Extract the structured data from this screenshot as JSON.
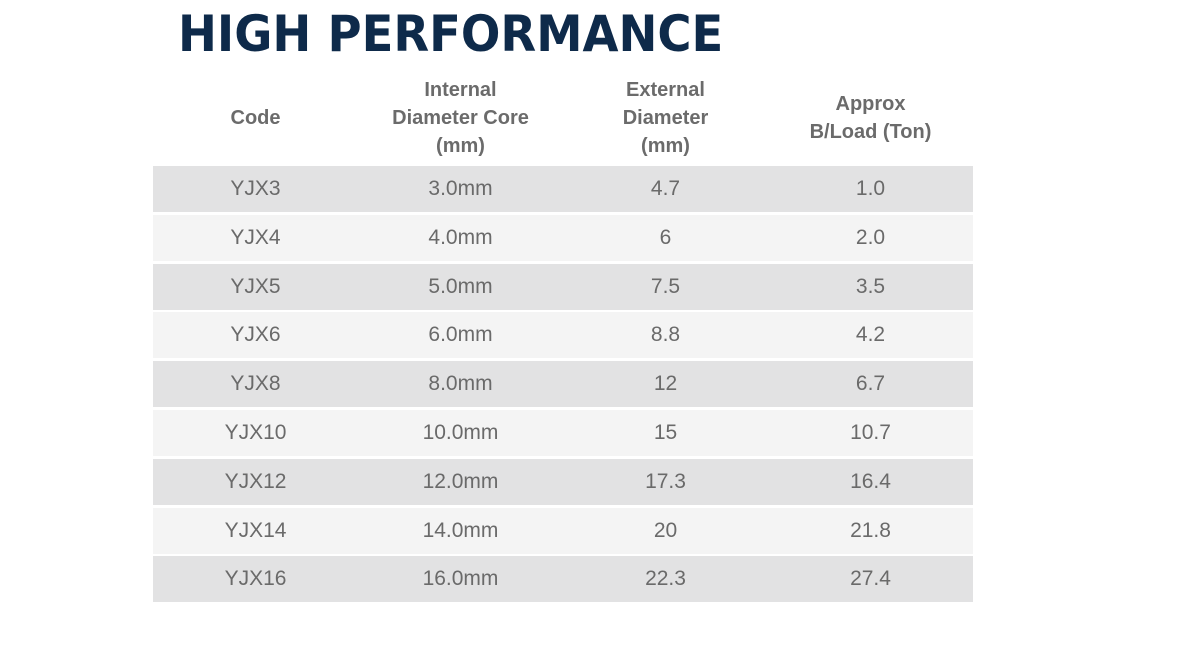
{
  "title": "HIGH PERFORMANCE",
  "table": {
    "headers": [
      {
        "line1": "Code",
        "line2": "",
        "line3": ""
      },
      {
        "line1": "Internal",
        "line2": "Diameter Core",
        "line3": "(mm)"
      },
      {
        "line1": "External",
        "line2": "Diameter",
        "line3": "(mm)"
      },
      {
        "line1": "Approx",
        "line2": "B/Load (Ton)",
        "line3": ""
      }
    ],
    "rows": [
      {
        "code": "YJX3",
        "internal": "3.0mm",
        "external": "4.7",
        "load": "1.0"
      },
      {
        "code": "YJX4",
        "internal": "4.0mm",
        "external": "6",
        "load": "2.0"
      },
      {
        "code": "YJX5",
        "internal": "5.0mm",
        "external": "7.5",
        "load": "3.5"
      },
      {
        "code": "YJX6",
        "internal": "6.0mm",
        "external": "8.8",
        "load": "4.2"
      },
      {
        "code": "YJX8",
        "internal": "8.0mm",
        "external": "12",
        "load": "6.7"
      },
      {
        "code": "YJX10",
        "internal": "10.0mm",
        "external": "15",
        "load": "10.7"
      },
      {
        "code": "YJX12",
        "internal": "12.0mm",
        "external": "17.3",
        "load": "16.4"
      },
      {
        "code": "YJX14",
        "internal": "14.0mm",
        "external": "20",
        "load": "21.8"
      },
      {
        "code": "YJX16",
        "internal": "16.0mm",
        "external": "22.3",
        "load": "27.4"
      }
    ]
  },
  "colors": {
    "title": "#0e2a4a",
    "row_dark": "#e2e2e3",
    "row_light": "#f4f4f4",
    "text": "#6a6a6a"
  }
}
